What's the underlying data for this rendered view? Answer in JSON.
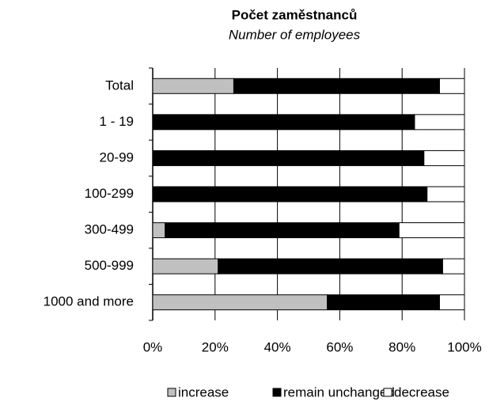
{
  "chart_data": {
    "type": "bar",
    "orientation": "horizontal",
    "stacked": true,
    "title": "Počet zaměstnanců",
    "subtitle": "Number of employees",
    "categories": [
      "Total",
      "1 - 19",
      "20-99",
      "100-299",
      "300-499",
      "500-999",
      "1000 and more"
    ],
    "series": [
      {
        "name": "increase",
        "color": "#c0c0c0",
        "values": [
          26,
          0,
          0,
          0,
          4,
          21,
          56
        ]
      },
      {
        "name": "remain unchanged",
        "color": "#000000",
        "values": [
          66,
          84,
          87,
          88,
          75,
          72,
          36
        ]
      },
      {
        "name": "decrease",
        "color": "#ffffff",
        "values": [
          8,
          16,
          13,
          12,
          21,
          7,
          8
        ]
      }
    ],
    "xlim": [
      0,
      100
    ],
    "xticks": [
      {
        "value": 0,
        "label": "0%"
      },
      {
        "value": 20,
        "label": "20%"
      },
      {
        "value": 40,
        "label": "40%"
      },
      {
        "value": 60,
        "label": "60%"
      },
      {
        "value": 80,
        "label": "80%"
      },
      {
        "value": 100,
        "label": "100%"
      }
    ],
    "grid": true,
    "legend": "bottom"
  }
}
